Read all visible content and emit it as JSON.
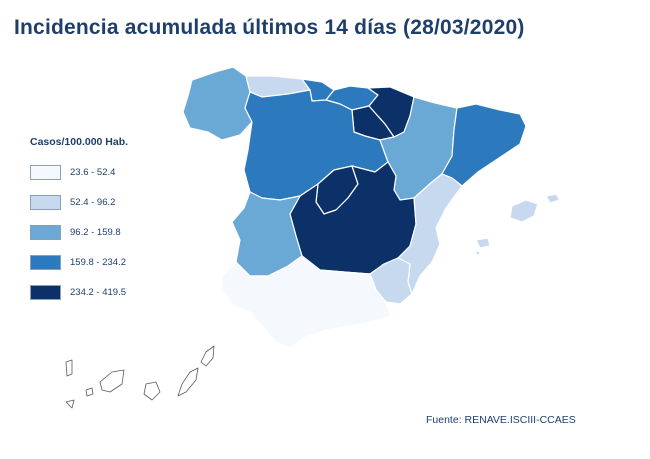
{
  "title": "Incidencia acumulada últimos 14 días (28/03/2020)",
  "legend": {
    "title": "Casos/100.000 Hab.",
    "items": [
      {
        "label": "23.6 - 52.4",
        "color": "#f5f8fc"
      },
      {
        "label": "52.4 - 96.2",
        "color": "#c6d9ee"
      },
      {
        "label": "96.2 - 159.8",
        "color": "#6aa8d6"
      },
      {
        "label": "159.8 - 234.2",
        "color": "#2c79bd"
      },
      {
        "label": "234.2 - 419.5",
        "color": "#0b3168"
      }
    ]
  },
  "source": "Fuente: RENAVE.ISCIII-CCAES"
}
